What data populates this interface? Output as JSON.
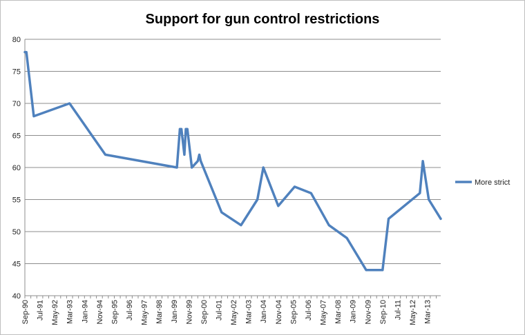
{
  "chart_data": {
    "type": "line",
    "title": "Support for gun control restrictions",
    "xlabel": "",
    "ylabel": "",
    "ylim": [
      40,
      80
    ],
    "yticks": [
      40,
      45,
      50,
      55,
      60,
      65,
      70,
      75,
      80
    ],
    "grid": true,
    "legend_position": "right",
    "x_tick_labels": [
      "Sep-90",
      "Jul-91",
      "May-92",
      "Mar-93",
      "Jan-94",
      "Nov-94",
      "Sep-95",
      "Jul-96",
      "May-97",
      "Mar-98",
      "Jan-99",
      "Nov-99",
      "Sep-00",
      "Jul-01",
      "May-02",
      "Mar-03",
      "Jan-04",
      "Nov-04",
      "Sep-05",
      "Jul-06",
      "May-07",
      "Mar-08",
      "Jan-09",
      "Nov-09",
      "Sep-10",
      "Jul-11",
      "May-12",
      "Mar-13"
    ],
    "x_range": [
      "1990-09",
      "2013-12"
    ],
    "series": [
      {
        "name": "More strict",
        "color": "#4f81bd",
        "points": [
          {
            "x": "1990-09",
            "y": 78
          },
          {
            "x": "1990-10",
            "y": 78
          },
          {
            "x": "1991-03",
            "y": 68
          },
          {
            "x": "1993-03",
            "y": 70
          },
          {
            "x": "1995-03",
            "y": 62
          },
          {
            "x": "1999-03",
            "y": 60
          },
          {
            "x": "1999-05",
            "y": 66
          },
          {
            "x": "1999-06",
            "y": 66
          },
          {
            "x": "1999-08",
            "y": 62
          },
          {
            "x": "1999-09",
            "y": 66
          },
          {
            "x": "1999-10",
            "y": 66
          },
          {
            "x": "2000-01",
            "y": 60
          },
          {
            "x": "2000-05",
            "y": 61
          },
          {
            "x": "2000-06",
            "y": 62
          },
          {
            "x": "2000-07",
            "y": 61
          },
          {
            "x": "2001-09",
            "y": 53
          },
          {
            "x": "2002-10",
            "y": 51
          },
          {
            "x": "2003-09",
            "y": 55
          },
          {
            "x": "2004-01",
            "y": 60
          },
          {
            "x": "2004-11",
            "y": 54
          },
          {
            "x": "2005-10",
            "y": 57
          },
          {
            "x": "2006-09",
            "y": 56
          },
          {
            "x": "2007-09",
            "y": 51
          },
          {
            "x": "2008-09",
            "y": 49
          },
          {
            "x": "2009-10",
            "y": 44
          },
          {
            "x": "2010-09",
            "y": 44
          },
          {
            "x": "2011-01",
            "y": 52
          },
          {
            "x": "2012-10",
            "y": 56
          },
          {
            "x": "2012-12",
            "y": 61
          },
          {
            "x": "2013-04",
            "y": 55
          },
          {
            "x": "2013-12",
            "y": 52
          }
        ]
      }
    ]
  }
}
